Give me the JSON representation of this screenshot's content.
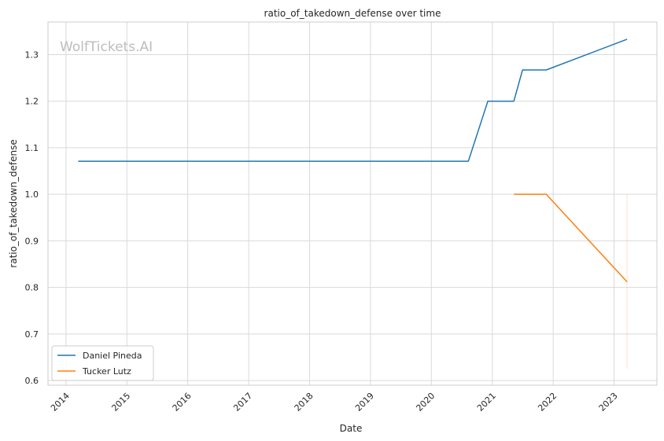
{
  "watermark": "WolfTickets.AI",
  "chart_data": {
    "type": "line",
    "title": "ratio_of_takedown_defense over time",
    "xlabel": "Date",
    "ylabel": "ratio_of_takedown_defense",
    "xlim": [
      "2013-09-15",
      "2023-09-15"
    ],
    "ylim": [
      0.59,
      1.37
    ],
    "xticks": [
      "2014-01-01",
      "2015-01-01",
      "2016-01-01",
      "2017-01-01",
      "2018-01-01",
      "2019-01-01",
      "2020-01-01",
      "2021-01-01",
      "2022-01-01",
      "2023-01-01"
    ],
    "xtick_labels": [
      "2014",
      "2015",
      "2016",
      "2017",
      "2018",
      "2019",
      "2020",
      "2021",
      "2022",
      "2023"
    ],
    "yticks": [
      0.6,
      0.7,
      0.8,
      0.9,
      1.0,
      1.1,
      1.2,
      1.3
    ],
    "ytick_labels": [
      "0.6",
      "0.7",
      "0.8",
      "0.9",
      "1.0",
      "1.1",
      "1.2",
      "1.3"
    ],
    "grid": true,
    "legend_position": "lower-left",
    "series": [
      {
        "name": "Daniel Pineda",
        "color": "#1f77b4",
        "points": [
          [
            "2014-03-15",
            1.071
          ],
          [
            "2020-08-10",
            1.071
          ],
          [
            "2020-12-05",
            1.2
          ],
          [
            "2021-05-10",
            1.2
          ],
          [
            "2021-07-01",
            1.267
          ],
          [
            "2021-11-20",
            1.267
          ],
          [
            "2023-03-20",
            1.333
          ]
        ]
      },
      {
        "name": "Tucker Lutz",
        "color": "#ff7f0e",
        "points": [
          [
            "2021-05-10",
            1.0
          ],
          [
            "2021-11-20",
            1.0
          ],
          [
            "2023-03-20",
            0.812
          ]
        ]
      }
    ],
    "band": {
      "color": "#ff7f0e",
      "x": "2023-03-20",
      "low": 0.625,
      "high": 1.0
    }
  }
}
